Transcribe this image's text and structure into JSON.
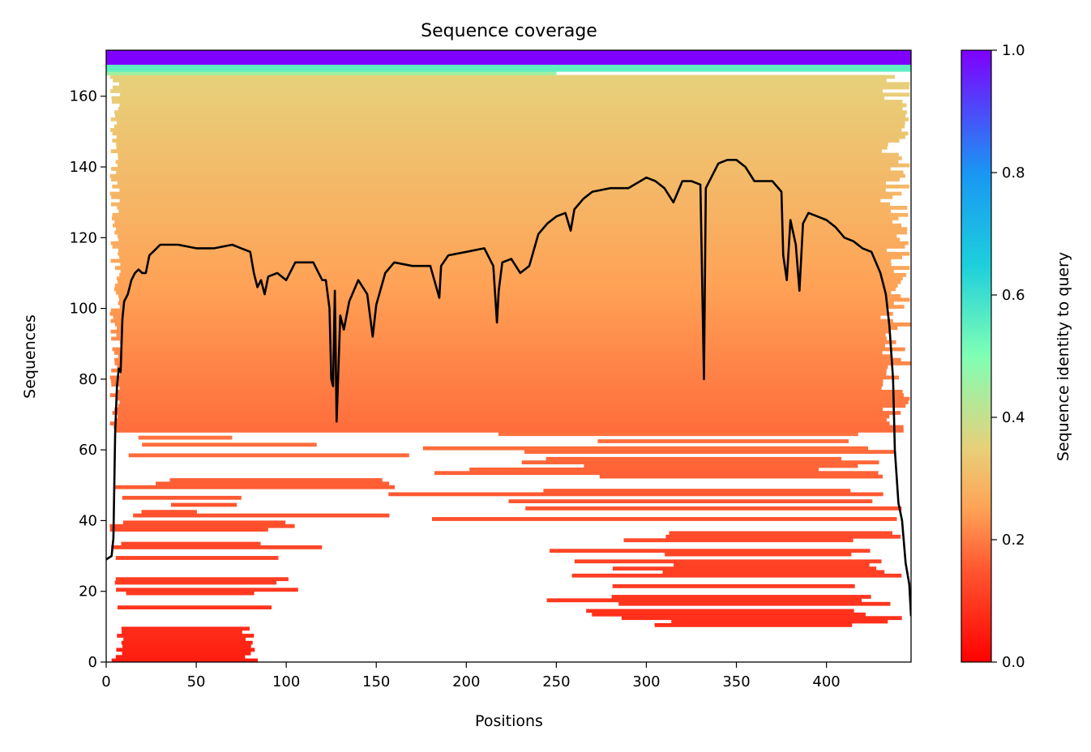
{
  "chart_data": {
    "type": "heatmap",
    "title": "Sequence coverage",
    "xlabel": "Positions",
    "ylabel": "Sequences",
    "xlim": [
      0,
      447
    ],
    "ylim": [
      0,
      173
    ],
    "x_ticks": [
      0,
      50,
      100,
      150,
      200,
      250,
      300,
      350,
      400
    ],
    "x_tick_labels": [
      "0",
      "50",
      "100",
      "150",
      "200",
      "250",
      "300",
      "350",
      "400"
    ],
    "y_ticks": [
      0,
      20,
      40,
      60,
      80,
      100,
      120,
      140,
      160
    ],
    "y_tick_labels": [
      "0",
      "20",
      "40",
      "60",
      "80",
      "100",
      "120",
      "140",
      "160"
    ],
    "colorbar": {
      "label": "Sequence identity to query",
      "range": [
        0.0,
        1.0
      ],
      "ticks": [
        0.0,
        0.2,
        0.4,
        0.6,
        0.8,
        1.0
      ],
      "tick_labels": [
        "0.0",
        "0.2",
        "0.4",
        "0.6",
        "0.8",
        "1.0"
      ],
      "colormap": "rainbow_r"
    },
    "coverage_line": {
      "color": "#000000",
      "x": [
        0,
        3,
        4,
        5,
        6,
        7,
        8,
        9,
        10,
        12,
        14,
        16,
        18,
        20,
        22,
        24,
        26,
        28,
        30,
        40,
        50,
        60,
        70,
        75,
        80,
        82,
        84,
        86,
        88,
        90,
        95,
        100,
        105,
        110,
        115,
        118,
        120,
        122,
        124,
        125,
        126,
        127,
        128,
        130,
        132,
        135,
        140,
        145,
        148,
        150,
        155,
        160,
        170,
        180,
        185,
        186,
        190,
        200,
        210,
        215,
        217,
        218,
        220,
        225,
        230,
        235,
        240,
        245,
        250,
        255,
        258,
        260,
        265,
        270,
        280,
        290,
        300,
        305,
        310,
        315,
        320,
        325,
        330,
        332,
        333,
        335,
        340,
        345,
        350,
        355,
        360,
        370,
        375,
        376,
        378,
        380,
        383,
        385,
        387,
        390,
        395,
        400,
        405,
        410,
        415,
        420,
        425,
        430,
        433,
        435,
        437,
        438,
        440,
        442,
        444,
        446,
        447
      ],
      "y": [
        29,
        30,
        35,
        65,
        78,
        83,
        82,
        97,
        102,
        104,
        108,
        110,
        111,
        110,
        110,
        115,
        116,
        117,
        118,
        118,
        117,
        117,
        118,
        117,
        116,
        110,
        106,
        108,
        104,
        109,
        110,
        108,
        113,
        113,
        113,
        110,
        108,
        108,
        100,
        80,
        78,
        105,
        68,
        98,
        94,
        102,
        108,
        104,
        92,
        101,
        110,
        113,
        112,
        112,
        103,
        112,
        115,
        116,
        117,
        112,
        96,
        105,
        113,
        114,
        110,
        112,
        121,
        124,
        126,
        127,
        122,
        128,
        131,
        133,
        134,
        134,
        137,
        136,
        134,
        130,
        136,
        136,
        135,
        80,
        134,
        136,
        141,
        142,
        142,
        140,
        136,
        136,
        133,
        115,
        108,
        125,
        118,
        105,
        124,
        127,
        126,
        125,
        123,
        120,
        119,
        117,
        116,
        110,
        104,
        95,
        80,
        60,
        45,
        40,
        28,
        22,
        13
      ]
    }
  }
}
